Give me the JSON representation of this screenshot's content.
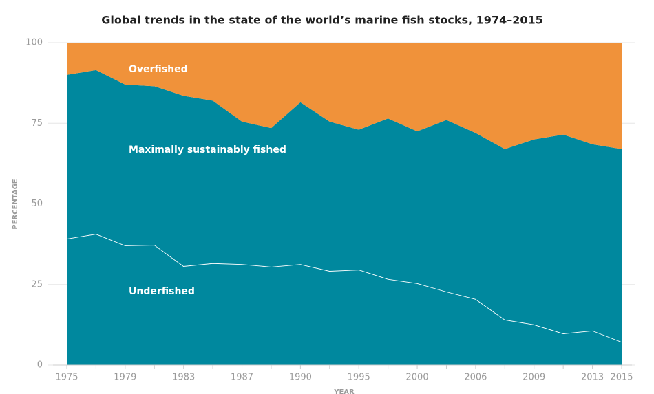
{
  "chart_data": {
    "type": "stacked-area",
    "title": "Global trends in the state of the world’s marine fish stocks, 1974–2015",
    "x_label": "YEAR",
    "y_label": "PERCENTAGE",
    "categories": [
      "1975",
      null,
      "1979",
      null,
      "1983",
      null,
      "1987",
      null,
      "1990",
      null,
      "1995",
      null,
      "2000",
      null,
      "2006",
      null,
      "2009",
      null,
      "2013",
      "2015"
    ],
    "series": [
      {
        "name": "Underfished",
        "color": "#00889e",
        "values": [
          39.2,
          40.7,
          37.1,
          37.3,
          30.7,
          31.6,
          31.3,
          30.5,
          31.3,
          29.2,
          29.6,
          26.7,
          25.4,
          22.8,
          20.5,
          14.1,
          12.6,
          9.8,
          10.7,
          7.2
        ]
      },
      {
        "name": "Maximally sustainably fished",
        "color": "#00889e",
        "values": [
          50.8,
          50.8,
          49.9,
          49.2,
          52.8,
          50.4,
          44.2,
          43,
          50.2,
          46.3,
          43.4,
          49.8,
          47.1,
          53.2,
          51.5,
          52.9,
          57.4,
          61.7,
          57.8,
          59.8
        ]
      },
      {
        "name": "Overfished",
        "color": "#f0923a",
        "values": [
          10,
          8.5,
          13,
          13.5,
          16.5,
          18,
          24.5,
          26.5,
          18.5,
          24.5,
          27,
          23.5,
          27.5,
          24,
          28,
          33,
          30,
          28.5,
          31.5,
          33
        ]
      }
    ],
    "ylim": [
      0,
      100
    ],
    "yticks": [
      0,
      25,
      50,
      75,
      100
    ],
    "grid": true
  }
}
